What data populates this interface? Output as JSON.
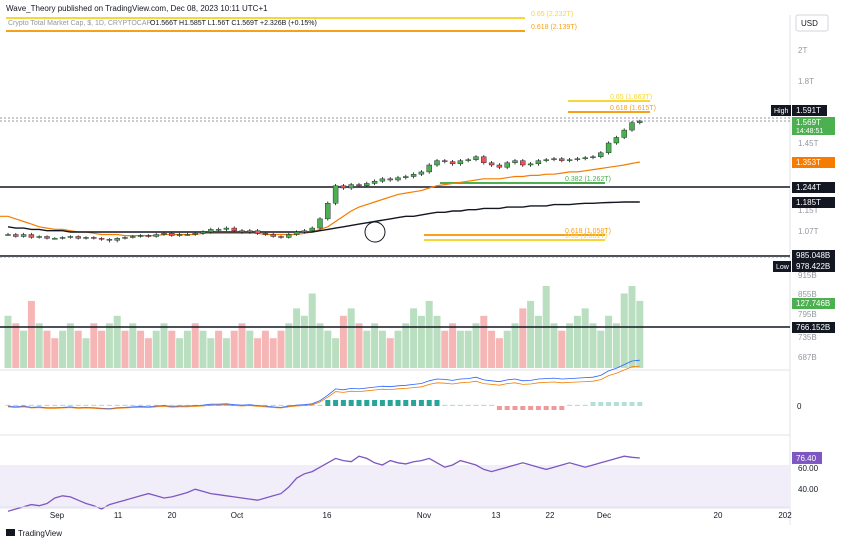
{
  "header": {
    "publisher": "Wave_Theory published on TradingView.com, Dec 08, 2023 10:11 UTC+1"
  },
  "legend": {
    "symbol": "Crypto Total Market Cap, $, 1D, CRYPTOCAP",
    "o": "1.566T",
    "h": "1.585T",
    "l": "1.56T",
    "c": "1.569T",
    "change": "+2.326B (+0.15%)"
  },
  "currency": "USD",
  "footer": {
    "brand": "TradingView"
  },
  "colors": {
    "up": "#26a69a",
    "up_candle": "#4caf50",
    "down": "#ef5350",
    "ema_orange": "#f57c00",
    "ema_black": "#131722",
    "fib_orange": "#f7a11a",
    "fib_yellow": "#f5d73a",
    "fib_green": "#4caf50",
    "volume_up": "#b9dfc0",
    "volume_down": "#f6b6b6",
    "macd_fast": "#2962ff",
    "macd_slow": "#f57c00",
    "rsi": "#7e57c2",
    "rsi_band": "#f1eefa"
  },
  "chart_data": {
    "type": "candlestick",
    "title": "Crypto Total Market Cap, $, 1D, CRYPTOCAP",
    "price_axis": {
      "ticks": [
        "2T",
        "1.8T",
        "1.45T",
        "1.15T",
        "1.07T",
        "915B",
        "855B",
        "795B",
        "735B",
        "687B"
      ],
      "labels": [
        {
          "text": "1.569T",
          "sub": "14:48:51",
          "color": "#4caf50",
          "value": 1.569
        },
        {
          "text": "1.353T",
          "color": "#f57c00",
          "value": 1.353
        },
        {
          "text": "1.244T",
          "color": "#131722",
          "value": 1.244
        },
        {
          "text": "1.185T",
          "color": "#131722",
          "value": 1.185
        },
        {
          "text": "985.048B",
          "color": "#131722",
          "value": 0.985
        },
        {
          "text": "127.746B",
          "color": "#4caf50",
          "value": 0.128
        },
        {
          "text": "766.152B",
          "color": "#131722",
          "value": 0.766
        }
      ],
      "high": {
        "label": "High",
        "value": "1.591T"
      },
      "low": {
        "label": "Low",
        "value": "978.422B"
      }
    },
    "x_axis": {
      "ticks": [
        "Sep",
        "11",
        "20",
        "Oct",
        "16",
        "Nov",
        "13",
        "22",
        "Dec",
        "20",
        "202"
      ]
    },
    "fib_levels": [
      {
        "text": "0.65 (2.232T)",
        "value": 2.232,
        "color": "#f5d73a"
      },
      {
        "text": "0.618 (2.139T)",
        "value": 2.139,
        "color": "#f7a11a"
      },
      {
        "text": "0.65 (1.663T)",
        "value": 1.663,
        "color": "#f5d73a"
      },
      {
        "text": "0.618 (1.615T)",
        "value": 1.615,
        "color": "#f7a11a"
      },
      {
        "text": "0.382 (1.262T)",
        "value": 1.262,
        "color": "#4caf50"
      },
      {
        "text": "0.618 (1.058T)",
        "value": 1.058,
        "color": "#f7a11a"
      },
      {
        "text": "0.65 (1.031T)",
        "value": 1.031,
        "color": "#f5d73a"
      }
    ],
    "horizontal_lines": [
      1.244,
      0.985,
      0.766
    ],
    "candles_close": [
      1.06,
      1.05,
      1.06,
      1.045,
      1.05,
      1.04,
      1.04,
      1.045,
      1.05,
      1.04,
      1.045,
      1.04,
      1.035,
      1.03,
      1.04,
      1.045,
      1.05,
      1.055,
      1.05,
      1.06,
      1.065,
      1.055,
      1.06,
      1.06,
      1.065,
      1.07,
      1.08,
      1.08,
      1.085,
      1.075,
      1.07,
      1.075,
      1.065,
      1.06,
      1.05,
      1.045,
      1.06,
      1.07,
      1.075,
      1.085,
      1.12,
      1.18,
      1.25,
      1.24,
      1.255,
      1.25,
      1.26,
      1.27,
      1.28,
      1.275,
      1.285,
      1.29,
      1.3,
      1.31,
      1.34,
      1.36,
      1.355,
      1.345,
      1.36,
      1.365,
      1.38,
      1.35,
      1.34,
      1.33,
      1.35,
      1.36,
      1.34,
      1.345,
      1.36,
      1.365,
      1.37,
      1.36,
      1.365,
      1.37,
      1.375,
      1.38,
      1.4,
      1.45,
      1.48,
      1.52,
      1.56,
      1.569
    ],
    "ema_orange": [
      1.13,
      1.12,
      1.11,
      1.1,
      1.09,
      1.085,
      1.08,
      1.08,
      1.075,
      1.07,
      1.07,
      1.065,
      1.06,
      1.06,
      1.06,
      1.055,
      1.055,
      1.055,
      1.055,
      1.055,
      1.06,
      1.06,
      1.06,
      1.06,
      1.06,
      1.065,
      1.065,
      1.065,
      1.065,
      1.065,
      1.065,
      1.065,
      1.065,
      1.06,
      1.06,
      1.06,
      1.06,
      1.06,
      1.065,
      1.07,
      1.08,
      1.09,
      1.11,
      1.13,
      1.15,
      1.165,
      1.175,
      1.185,
      1.195,
      1.205,
      1.215,
      1.22,
      1.225,
      1.23,
      1.24,
      1.25,
      1.255,
      1.26,
      1.265,
      1.27,
      1.275,
      1.28,
      1.28,
      1.28,
      1.285,
      1.29,
      1.29,
      1.295,
      1.295,
      1.3,
      1.3,
      1.305,
      1.31,
      1.31,
      1.315,
      1.32,
      1.325,
      1.33,
      1.335,
      1.34,
      1.347,
      1.353
    ],
    "ema_black": [
      1.09,
      1.085,
      1.085,
      1.08,
      1.08,
      1.075,
      1.075,
      1.075,
      1.07,
      1.07,
      1.07,
      1.07,
      1.07,
      1.07,
      1.07,
      1.07,
      1.07,
      1.07,
      1.07,
      1.07,
      1.07,
      1.07,
      1.07,
      1.07,
      1.07,
      1.07,
      1.07,
      1.07,
      1.07,
      1.07,
      1.07,
      1.07,
      1.07,
      1.07,
      1.07,
      1.07,
      1.07,
      1.07,
      1.07,
      1.07,
      1.075,
      1.08,
      1.085,
      1.09,
      1.095,
      1.1,
      1.105,
      1.11,
      1.115,
      1.12,
      1.125,
      1.13,
      1.13,
      1.135,
      1.14,
      1.145,
      1.145,
      1.15,
      1.15,
      1.155,
      1.155,
      1.16,
      1.16,
      1.16,
      1.165,
      1.165,
      1.165,
      1.17,
      1.17,
      1.17,
      1.175,
      1.175,
      1.175,
      1.178,
      1.18,
      1.18,
      1.182,
      1.183,
      1.184,
      1.185,
      1.185,
      1.185
    ],
    "volume": [
      0.7,
      0.6,
      0.5,
      0.9,
      0.6,
      0.5,
      0.4,
      0.5,
      0.6,
      0.5,
      0.4,
      0.6,
      0.5,
      0.6,
      0.7,
      0.5,
      0.6,
      0.5,
      0.4,
      0.5,
      0.6,
      0.5,
      0.4,
      0.5,
      0.6,
      0.5,
      0.4,
      0.5,
      0.4,
      0.5,
      0.6,
      0.5,
      0.4,
      0.5,
      0.4,
      0.5,
      0.6,
      0.8,
      0.7,
      1.0,
      0.6,
      0.5,
      0.4,
      0.7,
      0.8,
      0.6,
      0.5,
      0.6,
      0.5,
      0.4,
      0.5,
      0.6,
      0.8,
      0.7,
      0.9,
      0.7,
      0.5,
      0.6,
      0.5,
      0.5,
      0.6,
      0.7,
      0.5,
      0.4,
      0.5,
      0.6,
      0.8,
      0.9,
      0.7,
      1.1,
      0.6,
      0.5,
      0.6,
      0.7,
      0.8,
      0.6,
      0.5,
      0.7,
      0.6,
      1.0,
      1.1,
      0.9
    ],
    "volume_up": [
      true,
      false,
      true,
      false,
      true,
      false,
      false,
      true,
      true,
      false,
      true,
      false,
      false,
      true,
      true,
      false,
      true,
      false,
      false,
      true,
      true,
      false,
      true,
      true,
      false,
      true,
      true,
      false,
      true,
      false,
      false,
      true,
      false,
      false,
      false,
      false,
      true,
      true,
      true,
      true,
      true,
      true,
      true,
      false,
      true,
      false,
      true,
      true,
      true,
      false,
      true,
      true,
      true,
      true,
      true,
      true,
      false,
      false,
      true,
      true,
      true,
      false,
      false,
      false,
      true,
      true,
      false,
      true,
      true,
      true,
      true,
      false,
      true,
      true,
      true,
      true,
      true,
      true,
      true,
      true,
      true,
      true
    ],
    "macd_panel": {
      "zero_label": "0"
    },
    "rsi_panel": {
      "value_label": "76.40",
      "ticks": [
        "60.00",
        "40.00"
      ],
      "band": [
        30,
        70
      ]
    },
    "rsi": [
      28,
      30,
      32,
      34,
      33,
      35,
      40,
      42,
      41,
      38,
      35,
      33,
      30,
      34,
      36,
      38,
      40,
      42,
      44,
      42,
      40,
      41,
      43,
      45,
      48,
      46,
      44,
      43,
      42,
      41,
      40,
      39,
      38,
      40,
      42,
      44,
      50,
      58,
      62,
      64,
      68,
      72,
      76,
      74,
      73,
      78,
      76,
      72,
      70,
      74,
      72,
      71,
      73,
      74,
      76,
      72,
      68,
      70,
      74,
      72,
      70,
      66,
      64,
      66,
      68,
      70,
      72,
      70,
      68,
      66,
      68,
      70,
      72,
      70,
      68,
      70,
      72,
      74,
      76,
      78,
      77,
      76.4
    ]
  }
}
